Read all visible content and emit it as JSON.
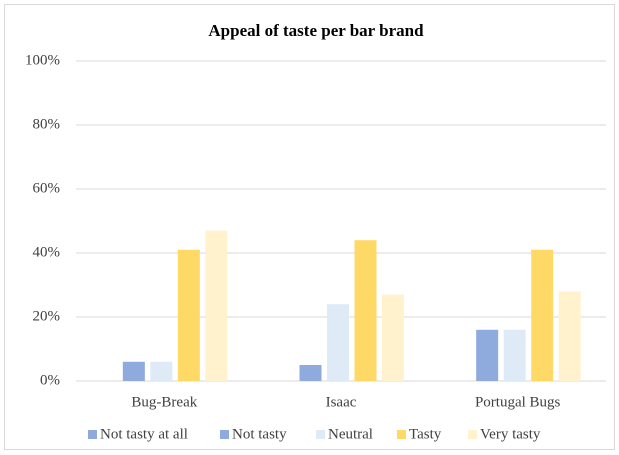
{
  "chart_data": {
    "type": "bar",
    "title": "Appeal of taste per bar brand",
    "categories": [
      "Bug-Break",
      "Isaac",
      "Portugal Bugs"
    ],
    "series": [
      {
        "name": "Not tasty at all",
        "color": "#8eaadb",
        "values": [
          0,
          0,
          0
        ]
      },
      {
        "name": "Not tasty",
        "color": "#8faadc",
        "values": [
          6,
          5,
          16
        ]
      },
      {
        "name": "Neutral",
        "color": "#deebf7",
        "values": [
          6,
          24,
          16
        ]
      },
      {
        "name": "Tasty",
        "color": "#ffd966",
        "values": [
          41,
          44,
          41
        ]
      },
      {
        "name": "Very tasty",
        "color": "#fff2cc",
        "values": [
          47,
          27,
          28
        ]
      }
    ],
    "ylim": [
      0,
      100
    ],
    "yticks": [
      {
        "value": 0,
        "label": "0%"
      },
      {
        "value": 20,
        "label": "20%"
      },
      {
        "value": 40,
        "label": "40%"
      },
      {
        "value": 60,
        "label": "60%"
      },
      {
        "value": 80,
        "label": "80%"
      },
      {
        "value": 100,
        "label": "100%"
      }
    ],
    "grid": true,
    "legend": "bottom"
  }
}
